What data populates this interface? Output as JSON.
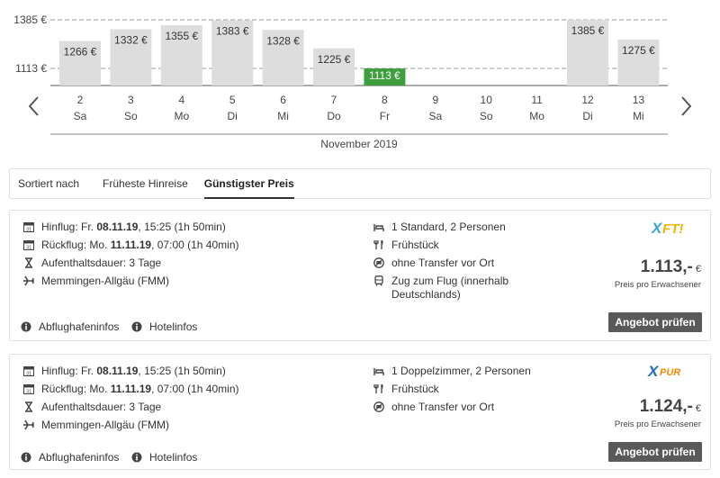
{
  "chart_data": {
    "type": "bar",
    "title": "",
    "xlabel": "November 2019",
    "ylabel": "",
    "y_ticks": [
      "1385 €",
      "1113 €"
    ],
    "days": [
      "2",
      "3",
      "4",
      "5",
      "6",
      "7",
      "8",
      "9",
      "10",
      "11",
      "12",
      "13"
    ],
    "weekdays": [
      "Sa",
      "So",
      "Mo",
      "Di",
      "Mi",
      "Do",
      "Fr",
      "Sa",
      "So",
      "Mo",
      "Di",
      "Mi"
    ],
    "values": [
      1266,
      1332,
      1355,
      1383,
      1328,
      1225,
      1113,
      null,
      null,
      null,
      1385,
      1275
    ],
    "labels": [
      "1266 €",
      "1332 €",
      "1355 €",
      "1383 €",
      "1328 €",
      "1225 €",
      "1113 €",
      "",
      "",
      "",
      "1385 €",
      "1275 €"
    ],
    "highlight_index": 6,
    "colors": {
      "bar": "#dddddd",
      "highlight": "#3f9f3f"
    }
  },
  "sort": {
    "label": "Sortiert nach",
    "options": [
      "Früheste Hinreise",
      "Günstigster Preis"
    ],
    "active": "Günstigster Preis"
  },
  "offers": [
    {
      "outbound_prefix": "Hinflug: Fr. ",
      "outbound_date": "08.11.19",
      "outbound_suffix": ", 15:25 (1h 50min)",
      "return_prefix": "Rückflug: Mo. ",
      "return_date": "11.11.19",
      "return_suffix": ", 07:00 (1h 40min)",
      "duration": "Aufenthaltsdauer: 3 Tage",
      "airport": "Memmingen-Allgäu (FMM)",
      "room": "1 Standard, 2 Personen",
      "board": "Frühstück",
      "transfer": "ohne Transfer vor Ort",
      "train": "Zug zum Flug (innerhalb Deutschlands)",
      "operator_logo": "XFT!",
      "price": "1.113,-",
      "currency": "€",
      "price_note": "Preis pro Erwachsener",
      "button": "Angebot prüfen",
      "airport_info": "Abflughafeninfos",
      "hotel_info": "Hotelinfos"
    },
    {
      "outbound_prefix": "Hinflug: Fr. ",
      "outbound_date": "08.11.19",
      "outbound_suffix": ", 15:25 (1h 50min)",
      "return_prefix": "Rückflug: Mo. ",
      "return_date": "11.11.19",
      "return_suffix": ", 07:00 (1h 40min)",
      "duration": "Aufenthaltsdauer: 3 Tage",
      "airport": "Memmingen-Allgäu (FMM)",
      "room": "1 Doppelzimmer, 2 Personen",
      "board": "Frühstück",
      "transfer": "ohne Transfer vor Ort",
      "operator_logo": "XPUR",
      "price": "1.124,-",
      "currency": "€",
      "price_note": "Preis pro Erwachsener",
      "button": "Angebot prüfen",
      "airport_info": "Abflughafeninfos",
      "hotel_info": "Hotelinfos"
    }
  ]
}
